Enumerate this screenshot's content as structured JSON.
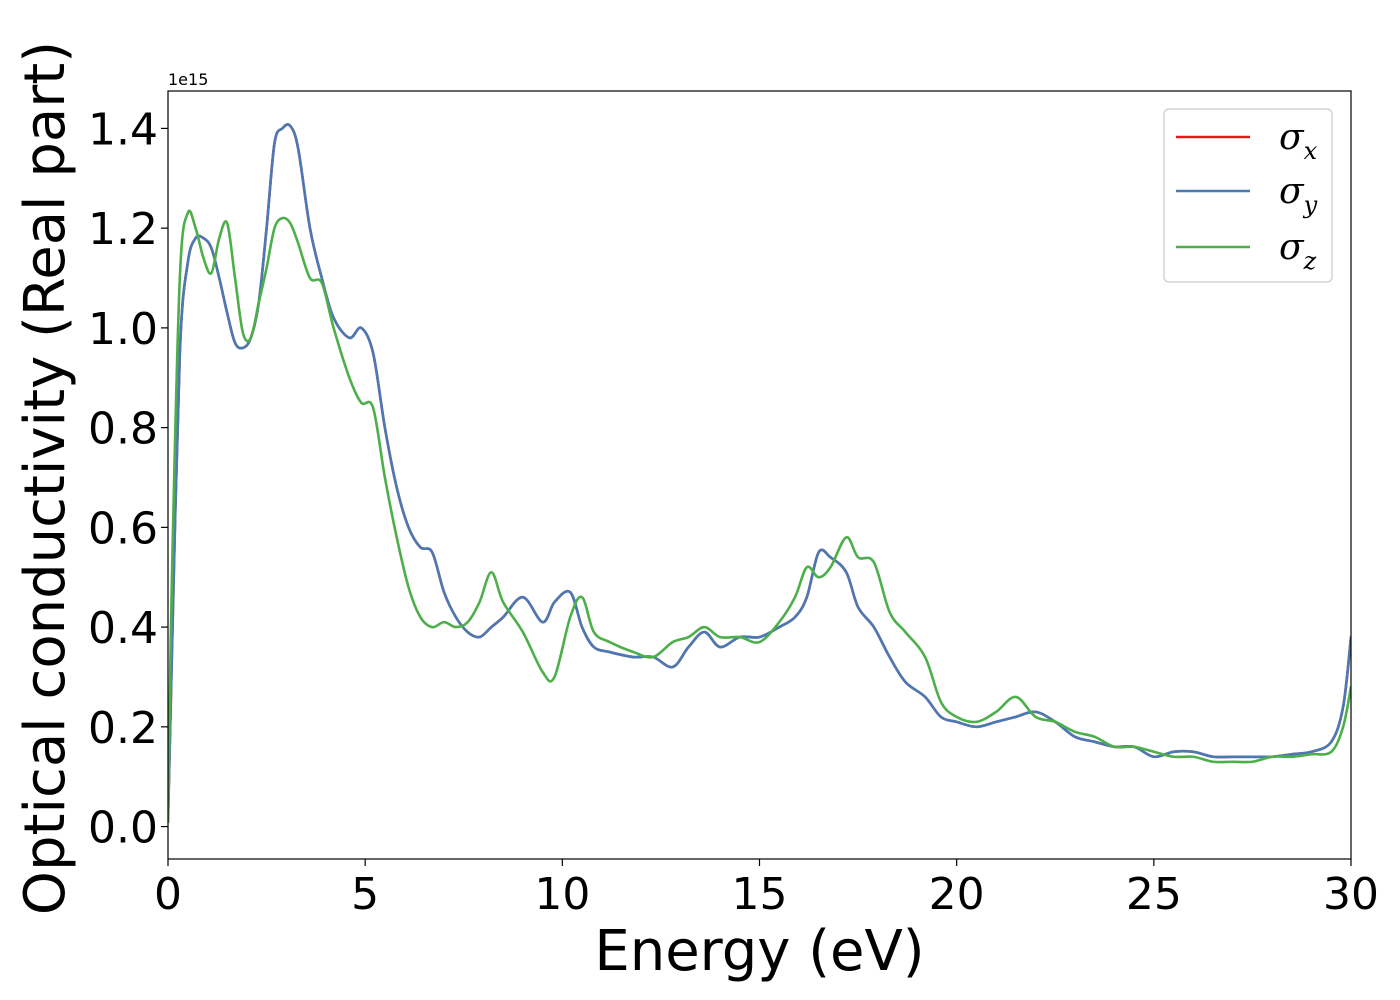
{
  "chart_data": {
    "type": "line",
    "xlabel": "Energy (eV)",
    "ylabel": "Optical conductivity (Real part)",
    "y_offset_label": "1e15",
    "xlim": [
      0,
      30
    ],
    "ylim": [
      -0.065,
      1.475
    ],
    "xticks": [
      0,
      5,
      10,
      15,
      20,
      25,
      30
    ],
    "xtick_labels": [
      "0",
      "5",
      "10",
      "15",
      "20",
      "25",
      "30"
    ],
    "yticks": [
      0.0,
      0.2,
      0.4,
      0.6,
      0.8,
      1.0,
      1.2,
      1.4
    ],
    "ytick_labels": [
      "0.0",
      "0.2",
      "0.4",
      "0.6",
      "0.8",
      "1.0",
      "1.2",
      "1.4"
    ],
    "grid": false,
    "legend": "top-right",
    "series": [
      {
        "name": "σx",
        "base": "σ",
        "sub": "x",
        "color": "#e41a1c",
        "x": [
          0,
          0.1,
          0.3,
          0.5,
          0.7,
          0.9,
          1.1,
          1.3,
          1.5,
          1.7,
          1.9,
          2.1,
          2.3,
          2.5,
          2.7,
          2.9,
          3.1,
          3.3,
          3.6,
          3.9,
          4.2,
          4.6,
          4.9,
          5.2,
          5.5,
          5.8,
          6.1,
          6.4,
          6.7,
          7.0,
          7.3,
          7.6,
          7.9,
          8.2,
          8.5,
          9.0,
          9.5,
          9.8,
          10.2,
          10.5,
          10.8,
          11.2,
          11.8,
          12.3,
          12.8,
          13.2,
          13.6,
          14.0,
          14.5,
          15.0,
          15.5,
          15.9,
          16.2,
          16.5,
          16.8,
          17.2,
          17.5,
          17.9,
          18.3,
          18.7,
          19.2,
          19.6,
          20.0,
          20.5,
          21.0,
          21.5,
          22.0,
          22.5,
          23.0,
          23.5,
          24.0,
          24.5,
          25.0,
          25.5,
          26.0,
          26.5,
          27.0,
          27.5,
          28.0,
          28.5,
          29.0,
          29.5,
          29.8,
          30.0
        ],
        "values": [
          0.01,
          0.35,
          0.95,
          1.13,
          1.18,
          1.18,
          1.16,
          1.1,
          1.03,
          0.97,
          0.96,
          0.98,
          1.05,
          1.2,
          1.37,
          1.4,
          1.405,
          1.36,
          1.2,
          1.1,
          1.02,
          0.98,
          1.0,
          0.95,
          0.8,
          0.68,
          0.6,
          0.56,
          0.55,
          0.47,
          0.42,
          0.39,
          0.38,
          0.4,
          0.42,
          0.46,
          0.41,
          0.45,
          0.47,
          0.4,
          0.36,
          0.35,
          0.34,
          0.34,
          0.32,
          0.36,
          0.39,
          0.36,
          0.38,
          0.38,
          0.4,
          0.42,
          0.46,
          0.55,
          0.54,
          0.51,
          0.44,
          0.4,
          0.34,
          0.29,
          0.26,
          0.22,
          0.21,
          0.2,
          0.21,
          0.22,
          0.23,
          0.21,
          0.18,
          0.17,
          0.16,
          0.16,
          0.14,
          0.15,
          0.15,
          0.14,
          0.14,
          0.14,
          0.14,
          0.145,
          0.15,
          0.17,
          0.24,
          0.38
        ]
      },
      {
        "name": "σy",
        "base": "σ",
        "sub": "y",
        "color": "#4a7ab5",
        "x": [
          0,
          0.1,
          0.3,
          0.5,
          0.7,
          0.9,
          1.1,
          1.3,
          1.5,
          1.7,
          1.9,
          2.1,
          2.3,
          2.5,
          2.7,
          2.9,
          3.1,
          3.3,
          3.6,
          3.9,
          4.2,
          4.6,
          4.9,
          5.2,
          5.5,
          5.8,
          6.1,
          6.4,
          6.7,
          7.0,
          7.3,
          7.6,
          7.9,
          8.2,
          8.5,
          9.0,
          9.5,
          9.8,
          10.2,
          10.5,
          10.8,
          11.2,
          11.8,
          12.3,
          12.8,
          13.2,
          13.6,
          14.0,
          14.5,
          15.0,
          15.5,
          15.9,
          16.2,
          16.5,
          16.8,
          17.2,
          17.5,
          17.9,
          18.3,
          18.7,
          19.2,
          19.6,
          20.0,
          20.5,
          21.0,
          21.5,
          22.0,
          22.5,
          23.0,
          23.5,
          24.0,
          24.5,
          25.0,
          25.5,
          26.0,
          26.5,
          27.0,
          27.5,
          28.0,
          28.5,
          29.0,
          29.5,
          29.8,
          30.0
        ],
        "values": [
          0.01,
          0.35,
          0.95,
          1.13,
          1.18,
          1.18,
          1.16,
          1.1,
          1.03,
          0.97,
          0.96,
          0.98,
          1.05,
          1.2,
          1.37,
          1.4,
          1.405,
          1.36,
          1.2,
          1.1,
          1.02,
          0.98,
          1.0,
          0.95,
          0.8,
          0.68,
          0.6,
          0.56,
          0.55,
          0.47,
          0.42,
          0.39,
          0.38,
          0.4,
          0.42,
          0.46,
          0.41,
          0.45,
          0.47,
          0.4,
          0.36,
          0.35,
          0.34,
          0.34,
          0.32,
          0.36,
          0.39,
          0.36,
          0.38,
          0.38,
          0.4,
          0.42,
          0.46,
          0.55,
          0.54,
          0.51,
          0.44,
          0.4,
          0.34,
          0.29,
          0.26,
          0.22,
          0.21,
          0.2,
          0.21,
          0.22,
          0.23,
          0.21,
          0.18,
          0.17,
          0.16,
          0.16,
          0.14,
          0.15,
          0.15,
          0.14,
          0.14,
          0.14,
          0.14,
          0.145,
          0.15,
          0.17,
          0.24,
          0.38
        ]
      },
      {
        "name": "σz",
        "base": "σ",
        "sub": "z",
        "color": "#4daf4a",
        "x": [
          0,
          0.1,
          0.3,
          0.5,
          0.7,
          0.9,
          1.1,
          1.3,
          1.5,
          1.7,
          1.9,
          2.1,
          2.3,
          2.5,
          2.7,
          2.9,
          3.1,
          3.3,
          3.6,
          3.9,
          4.2,
          4.6,
          4.9,
          5.2,
          5.5,
          5.8,
          6.1,
          6.4,
          6.7,
          7.0,
          7.3,
          7.6,
          7.9,
          8.2,
          8.5,
          9.0,
          9.5,
          9.8,
          10.2,
          10.5,
          10.8,
          11.2,
          11.8,
          12.3,
          12.8,
          13.2,
          13.6,
          14.0,
          14.5,
          15.0,
          15.5,
          15.9,
          16.2,
          16.5,
          16.8,
          17.2,
          17.5,
          17.9,
          18.3,
          18.7,
          19.2,
          19.6,
          20.0,
          20.5,
          21.0,
          21.5,
          22.0,
          22.5,
          23.0,
          23.5,
          24.0,
          24.5,
          25.0,
          25.5,
          26.0,
          26.5,
          27.0,
          27.5,
          28.0,
          28.5,
          29.0,
          29.5,
          29.8,
          30.0
        ],
        "values": [
          0.01,
          0.5,
          1.1,
          1.23,
          1.2,
          1.14,
          1.11,
          1.18,
          1.21,
          1.1,
          0.99,
          0.98,
          1.05,
          1.12,
          1.2,
          1.22,
          1.21,
          1.17,
          1.1,
          1.09,
          1.0,
          0.9,
          0.85,
          0.84,
          0.7,
          0.58,
          0.48,
          0.42,
          0.4,
          0.41,
          0.4,
          0.41,
          0.45,
          0.51,
          0.45,
          0.39,
          0.31,
          0.3,
          0.42,
          0.46,
          0.39,
          0.37,
          0.35,
          0.34,
          0.37,
          0.38,
          0.4,
          0.38,
          0.38,
          0.37,
          0.41,
          0.46,
          0.52,
          0.5,
          0.52,
          0.58,
          0.54,
          0.53,
          0.43,
          0.39,
          0.34,
          0.25,
          0.22,
          0.21,
          0.23,
          0.26,
          0.22,
          0.21,
          0.19,
          0.18,
          0.16,
          0.16,
          0.15,
          0.14,
          0.14,
          0.13,
          0.13,
          0.13,
          0.14,
          0.14,
          0.145,
          0.15,
          0.2,
          0.28
        ]
      }
    ]
  }
}
